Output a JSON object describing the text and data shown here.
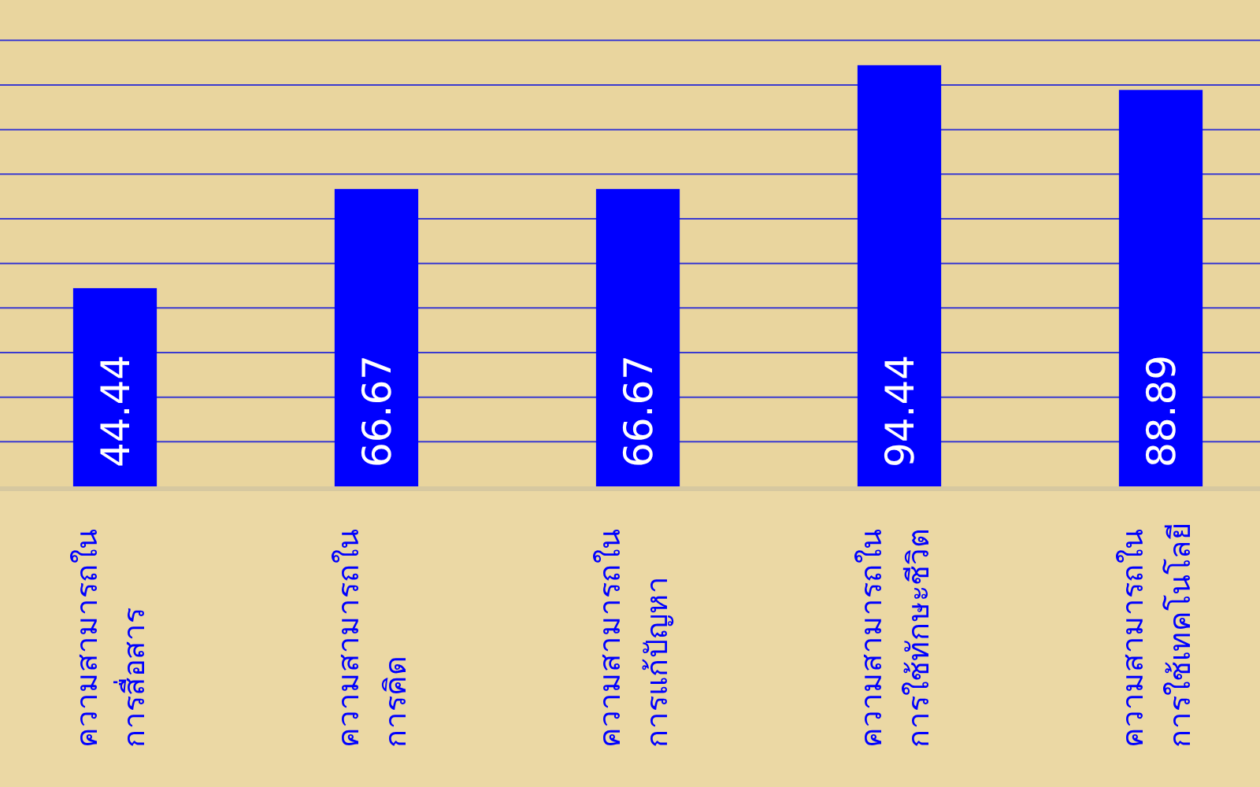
{
  "chart_data": {
    "type": "bar",
    "categories": [
      "ความสามารถใน\nการสื่อสาร",
      "ความสามารถใน\nการคิด",
      "ความสามารถใน\nการแก้ปัญหา",
      "ความสามารถใน\nการใช้ทักษะชีวิต",
      "ความสามารถใน\nการใช้เทคโนโลยี"
    ],
    "values": [
      44.44,
      66.67,
      66.67,
      94.44,
      88.89
    ],
    "color": "#0000ff",
    "ylim": [
      0,
      108
    ],
    "yticks": [
      {
        "value": 10,
        "label": null
      },
      {
        "value": 20,
        "label": null
      },
      {
        "value": 30,
        "label": null
      },
      {
        "value": 40,
        "label": null
      },
      {
        "value": 50,
        "label": null
      },
      {
        "value": 60,
        "label": null
      },
      {
        "value": 70,
        "label": null
      },
      {
        "value": 80,
        "label": null
      },
      {
        "value": 90,
        "label": null
      },
      {
        "value": 100,
        "label": null
      }
    ],
    "tick_labels": "x",
    "grid": "y",
    "data_labels": true
  }
}
